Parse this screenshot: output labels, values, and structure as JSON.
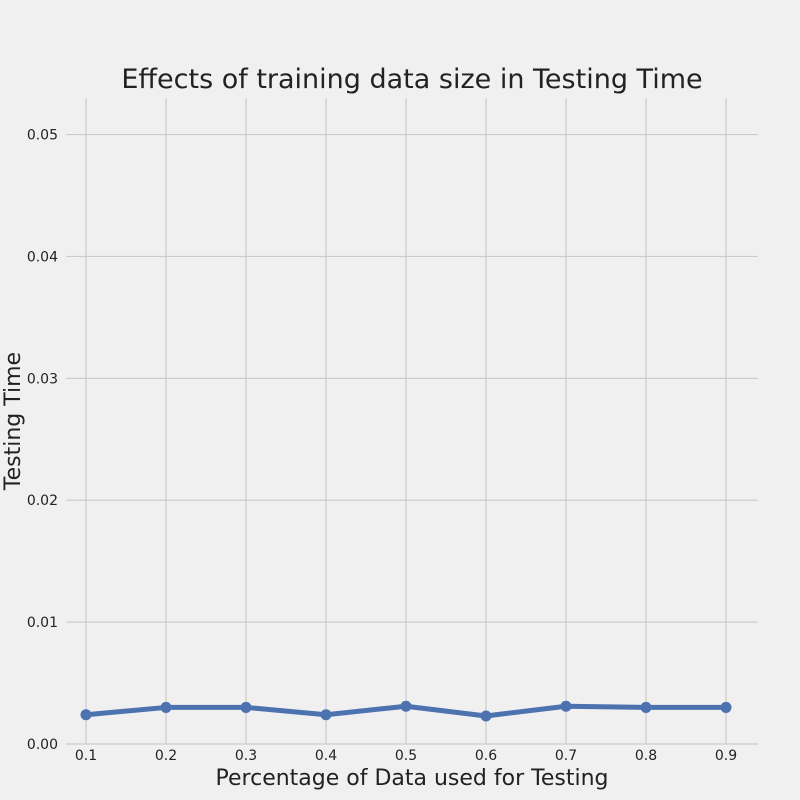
{
  "chart_data": {
    "type": "line",
    "title": "Effects of training data size in Testing Time",
    "xlabel": "Percentage of Data used for Testing",
    "ylabel": "Testing Time",
    "x": [
      0.1,
      0.2,
      0.3,
      0.4,
      0.5,
      0.6,
      0.7,
      0.8,
      0.9
    ],
    "series": [
      {
        "values": [
          0.0024,
          0.003,
          0.003,
          0.0024,
          0.0031,
          0.0023,
          0.0031,
          0.003,
          0.003
        ],
        "color": "#4c72b0"
      }
    ],
    "xticks": [
      "0.1",
      "0.2",
      "0.3",
      "0.4",
      "0.5",
      "0.6",
      "0.7",
      "0.8",
      "0.9"
    ],
    "yticks": [
      "0.00",
      "0.01",
      "0.02",
      "0.03",
      "0.04",
      "0.05"
    ],
    "xlim": [
      0.075,
      0.94
    ],
    "ylim": [
      0.0,
      0.053
    ],
    "grid": true,
    "background": "#f0f0f0",
    "grid_color": "#cbcbcb"
  }
}
